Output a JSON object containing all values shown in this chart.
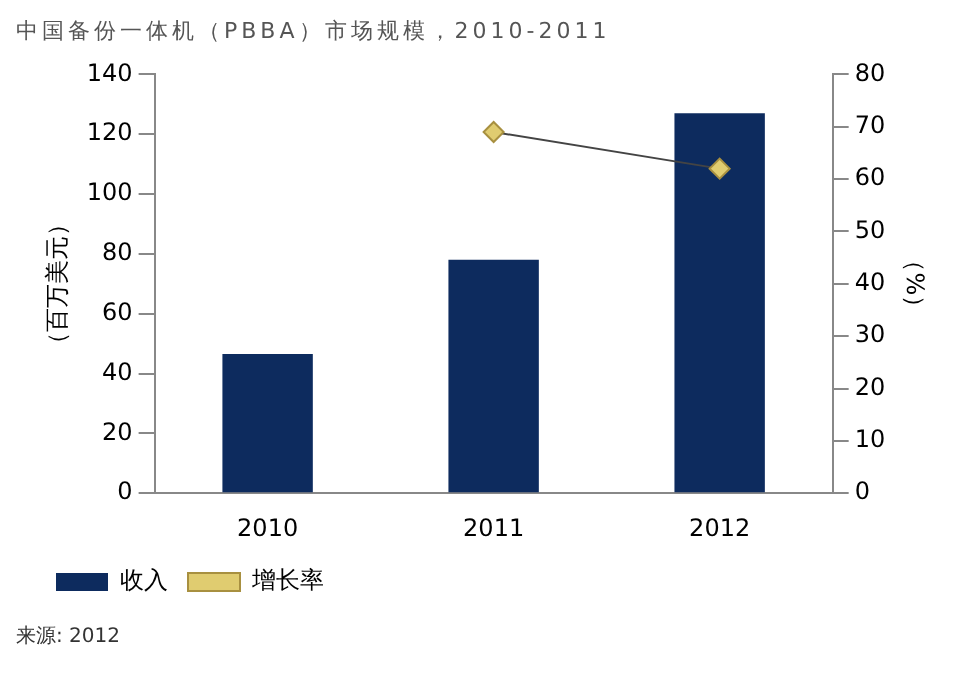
{
  "chart_data": {
    "type": "bar",
    "title": "中国备份一体机（PBBA）市场规模，2010-2011",
    "ylabel": "（百万美元）",
    "y2label": "（%）",
    "categories": [
      "2010",
      "2011",
      "2012"
    ],
    "series": [
      {
        "name": "收入",
        "color": "#0d2b5e",
        "values": [
          46.5,
          78,
          127
        ]
      },
      {
        "name": "增长率",
        "type": "line",
        "axis": "y2",
        "color": "#e0cc70",
        "marker": "diamond",
        "values": [
          null,
          69,
          62
        ]
      }
    ],
    "ylim": [
      0,
      140
    ],
    "yticks": [
      0,
      20,
      40,
      60,
      80,
      100,
      120,
      140
    ],
    "y2lim": [
      0,
      80
    ],
    "y2ticks": [
      0,
      10,
      20,
      30,
      40,
      50,
      60,
      70,
      80
    ],
    "grid": false,
    "legend": "bottom left",
    "annotations": [
      "来源: 2012"
    ]
  }
}
